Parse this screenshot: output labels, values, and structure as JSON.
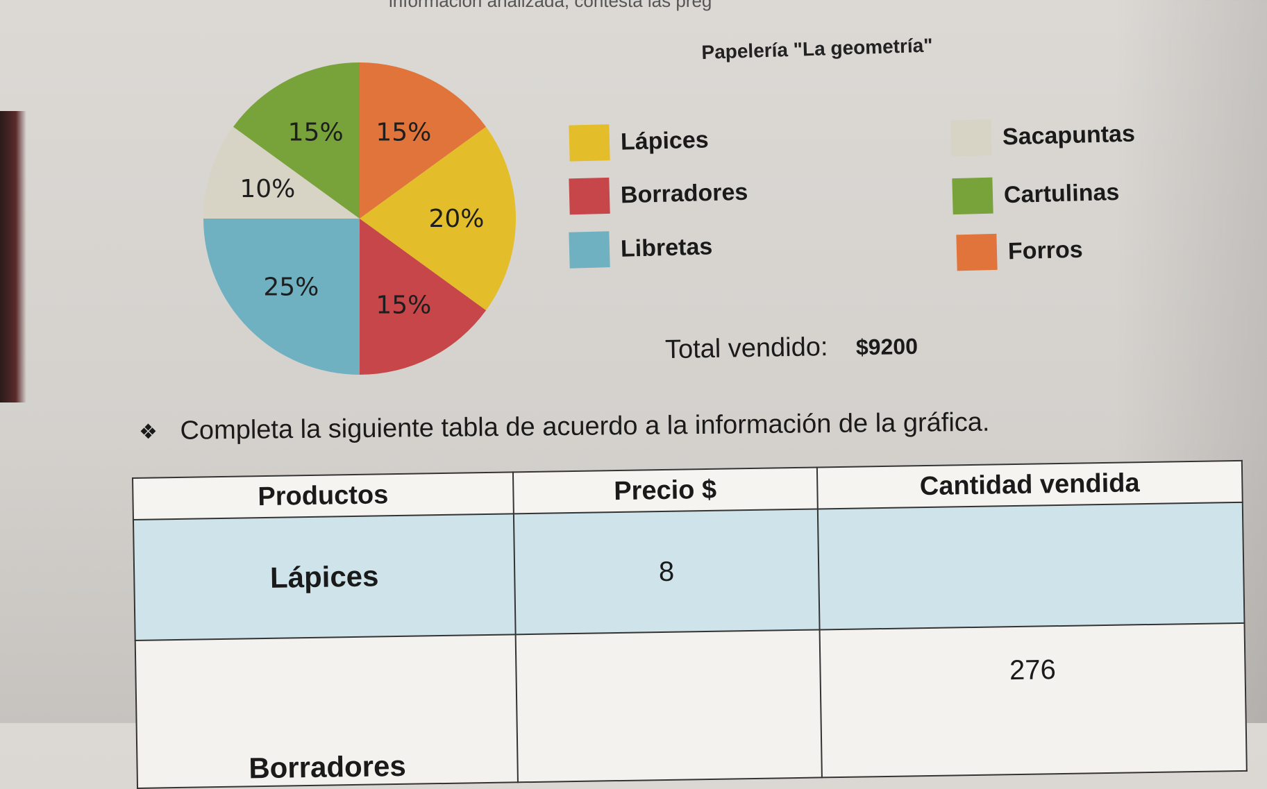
{
  "header_fragment": "información analizada, contesta las preg",
  "chart_data": {
    "type": "pie",
    "title": "Papelería \"La geometría\"",
    "slices": [
      {
        "name": "Forros",
        "value": 15,
        "label": "15%",
        "color": "#e0743a"
      },
      {
        "name": "Lápices",
        "value": 20,
        "label": "20%",
        "color": "#e3bd2a"
      },
      {
        "name": "Borradores",
        "value": 15,
        "label": "15%",
        "color": "#c6464a"
      },
      {
        "name": "Libretas",
        "value": 25,
        "label": "25%",
        "color": "#6fb1c0"
      },
      {
        "name": "Sacapuntas",
        "value": 10,
        "label": "10%",
        "color": "#d7d3c5"
      },
      {
        "name": "Cartulinas",
        "value": 15,
        "label": "15%",
        "color": "#78a23a"
      }
    ],
    "legend": [
      {
        "name": "Lápices",
        "color": "#e3bd2a"
      },
      {
        "name": "Borradores",
        "color": "#c6464a"
      },
      {
        "name": "Libretas",
        "color": "#6fb1c0"
      },
      {
        "name": "Sacapuntas",
        "color": "#d7d3c5"
      },
      {
        "name": "Cartulinas",
        "color": "#78a23a"
      },
      {
        "name": "Forros",
        "color": "#e0743a"
      }
    ]
  },
  "total": {
    "label": "Total vendido:",
    "value": "$9200"
  },
  "instruction": {
    "icon": "diamond-bullet-icon",
    "text": "Completa la siguiente tabla de acuerdo a la información de la gráfica."
  },
  "table": {
    "headers": [
      "Productos",
      "Precio $",
      "Cantidad vendida"
    ],
    "rows": [
      {
        "product": "Lápices",
        "price": "8",
        "quantity": ""
      },
      {
        "product": "Borradores",
        "price": "",
        "quantity": "276"
      }
    ]
  }
}
